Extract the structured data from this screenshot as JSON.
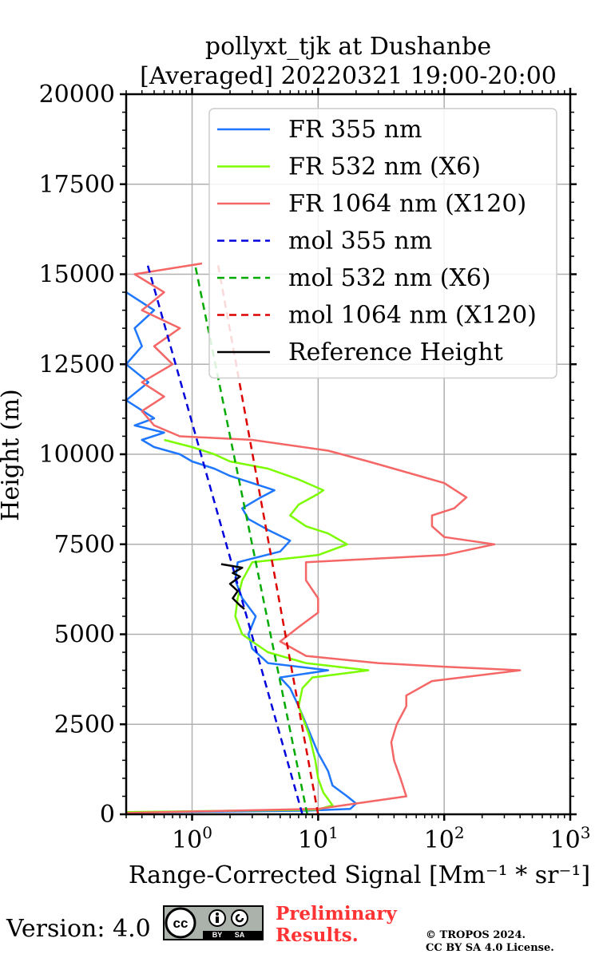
{
  "title_line1": "pollyxt_tjk at Dushanbe",
  "title_line2": "[Averaged] 20220321 19:00-20:00",
  "xlabel": "Range-Corrected Signal [Mm⁻¹ * sr⁻¹]",
  "ylabel": "Height (m)",
  "footer": {
    "version": "Version: 4.0",
    "preliminary_line1": "Preliminary",
    "preliminary_line2": "Results.",
    "copyright_line1": "© TROPOS 2024.",
    "copyright_line2": "CC BY SA 4.0 License.",
    "badge_cc": "cc",
    "badge_by": "BY",
    "badge_sa": "SA"
  },
  "chart_data": {
    "type": "line",
    "xscale": "log",
    "xlim": [
      0.3,
      1000
    ],
    "ylim": [
      0,
      20000
    ],
    "grid": true,
    "legend_position": "top-right",
    "x_ticks": [
      {
        "value": 1,
        "base": "10",
        "exp": "0"
      },
      {
        "value": 10,
        "base": "10",
        "exp": "1"
      },
      {
        "value": 100,
        "base": "10",
        "exp": "2"
      },
      {
        "value": 1000,
        "base": "10",
        "exp": "3"
      }
    ],
    "y_ticks": [
      "0",
      "2500",
      "5000",
      "7500",
      "10000",
      "12500",
      "15000",
      "17500",
      "20000"
    ],
    "series": [
      {
        "name": "FR 355 nm",
        "color": "#1f77ff",
        "dash": "solid",
        "points": [
          [
            0.3,
            50
          ],
          [
            8,
            100
          ],
          [
            18,
            150
          ],
          [
            20,
            300
          ],
          [
            17,
            500
          ],
          [
            13,
            800
          ],
          [
            12,
            1200
          ],
          [
            10,
            1700
          ],
          [
            8.5,
            2300
          ],
          [
            7,
            3000
          ],
          [
            6,
            3500
          ],
          [
            5,
            3800
          ],
          [
            12,
            4000
          ],
          [
            4,
            4200
          ],
          [
            3,
            4600
          ],
          [
            2.8,
            5000
          ],
          [
            3.2,
            5500
          ],
          [
            2.5,
            6000
          ],
          [
            2.2,
            6500
          ],
          [
            2.3,
            7000
          ],
          [
            5,
            7300
          ],
          [
            6,
            7600
          ],
          [
            4,
            7900
          ],
          [
            2.8,
            8200
          ],
          [
            2.5,
            8500
          ],
          [
            3.5,
            8800
          ],
          [
            4.5,
            9000
          ],
          [
            3,
            9200
          ],
          [
            2,
            9400
          ],
          [
            1.5,
            9600
          ],
          [
            1,
            9800
          ],
          [
            0.8,
            10000
          ],
          [
            0.5,
            10200
          ],
          [
            0.4,
            10400
          ],
          [
            0.6,
            10600
          ],
          [
            0.35,
            10800
          ],
          [
            0.5,
            11000
          ],
          [
            0.3,
            11500
          ],
          [
            0.45,
            12000
          ],
          [
            0.3,
            12500
          ],
          [
            0.4,
            13000
          ],
          [
            0.35,
            13500
          ],
          [
            0.5,
            14000
          ],
          [
            0.3,
            14500
          ]
        ]
      },
      {
        "name": "FR 532 nm (X6)",
        "color": "#7cfc00",
        "dash": "solid",
        "points": [
          [
            0.3,
            60
          ],
          [
            10,
            130
          ],
          [
            13,
            250
          ],
          [
            11,
            600
          ],
          [
            10,
            1000
          ],
          [
            9.5,
            1500
          ],
          [
            8.5,
            2200
          ],
          [
            7,
            3000
          ],
          [
            7.5,
            3500
          ],
          [
            9,
            3800
          ],
          [
            25,
            4000
          ],
          [
            8,
            4200
          ],
          [
            4,
            4500
          ],
          [
            3,
            4800
          ],
          [
            2.5,
            5000
          ],
          [
            2.2,
            5500
          ],
          [
            2.3,
            6000
          ],
          [
            2.5,
            6500
          ],
          [
            3,
            7000
          ],
          [
            10,
            7200
          ],
          [
            17,
            7500
          ],
          [
            12,
            7800
          ],
          [
            8,
            8000
          ],
          [
            6,
            8300
          ],
          [
            7,
            8600
          ],
          [
            10,
            8900
          ],
          [
            11,
            9000
          ],
          [
            7,
            9300
          ],
          [
            4,
            9600
          ],
          [
            2,
            9800
          ],
          [
            1.5,
            10000
          ],
          [
            1,
            10200
          ],
          [
            0.6,
            10400
          ]
        ]
      },
      {
        "name": "FR 1064 nm (X120)",
        "color": "#f56666",
        "dash": "solid",
        "points": [
          [
            0.3,
            40
          ],
          [
            10,
            150
          ],
          [
            50,
            500
          ],
          [
            45,
            1000
          ],
          [
            40,
            1500
          ],
          [
            38,
            2000
          ],
          [
            42,
            2500
          ],
          [
            50,
            3000
          ],
          [
            50,
            3300
          ],
          [
            80,
            3700
          ],
          [
            400,
            4000
          ],
          [
            100,
            4100
          ],
          [
            30,
            4200
          ],
          [
            8,
            4400
          ],
          [
            5,
            4800
          ],
          [
            7,
            5200
          ],
          [
            10,
            5600
          ],
          [
            10,
            6000
          ],
          [
            8,
            6500
          ],
          [
            8,
            7000
          ],
          [
            100,
            7200
          ],
          [
            250,
            7500
          ],
          [
            100,
            7700
          ],
          [
            80,
            8000
          ],
          [
            80,
            8300
          ],
          [
            120,
            8500
          ],
          [
            150,
            8800
          ],
          [
            100,
            9200
          ],
          [
            50,
            9500
          ],
          [
            25,
            9800
          ],
          [
            12,
            10100
          ],
          [
            3,
            10400
          ],
          [
            0.8,
            10500
          ],
          [
            0.5,
            10800
          ],
          [
            0.4,
            11200
          ],
          [
            0.6,
            11600
          ],
          [
            0.4,
            12000
          ],
          [
            0.7,
            12500
          ],
          [
            0.5,
            13000
          ],
          [
            0.8,
            13500
          ],
          [
            0.4,
            14000
          ],
          [
            0.6,
            14500
          ],
          [
            0.35,
            15000
          ],
          [
            1.2,
            15300
          ]
        ]
      },
      {
        "name": "mol 355 nm",
        "color": "#0000dd",
        "dash": "dashed",
        "points": [
          [
            7.5,
            0
          ],
          [
            0.44,
            15300
          ]
        ]
      },
      {
        "name": "mol 532 nm (X6)",
        "color": "#00aa00",
        "dash": "dashed",
        "points": [
          [
            8.2,
            0
          ],
          [
            1.05,
            15300
          ]
        ]
      },
      {
        "name": "mol 1064 nm (X120)",
        "color": "#dd0000",
        "dash": "dashed",
        "points": [
          [
            10,
            0
          ],
          [
            1.6,
            15300
          ]
        ]
      },
      {
        "name": "Reference Height",
        "color": "#000000",
        "dash": "solid",
        "points": [
          [
            2.6,
            5700
          ],
          [
            2.4,
            5800
          ],
          [
            2.1,
            6000
          ],
          [
            2.3,
            6200
          ],
          [
            2.0,
            6400
          ],
          [
            2.4,
            6600
          ],
          [
            2.1,
            6700
          ],
          [
            2.5,
            6850
          ],
          [
            1.7,
            6950
          ]
        ]
      }
    ]
  }
}
